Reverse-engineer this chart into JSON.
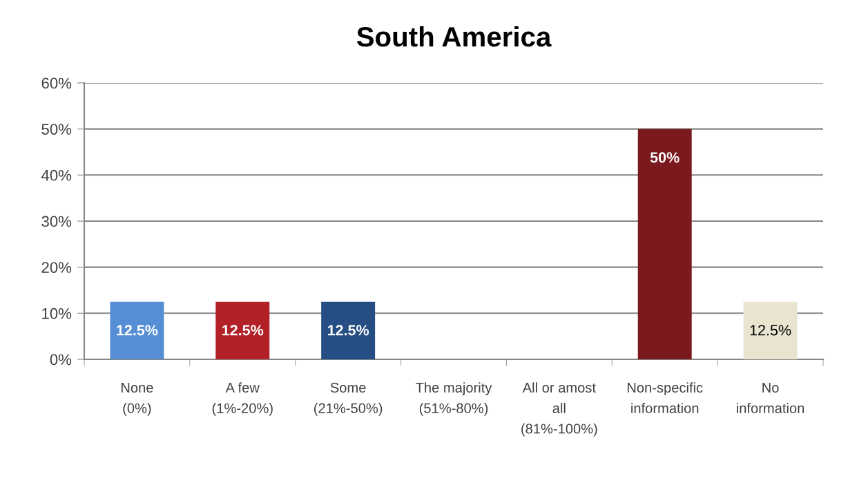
{
  "chart_data": {
    "type": "bar",
    "title": "South America",
    "categories": [
      "None\n(0%)",
      "A few\n(1%-20%)",
      "Some\n(21%-50%)",
      "The majority\n(51%-80%)",
      "All or amost\nall\n(81%-100%)",
      "Non-specific\ninformation",
      "No\ninformation"
    ],
    "values": [
      12.5,
      12.5,
      12.5,
      0,
      0,
      50,
      12.5
    ],
    "colors": [
      "#558ed5",
      "#b22028",
      "#254e84",
      "#254e84",
      "#254e84",
      "#7a1a1f",
      "#e8e4d0"
    ],
    "value_labels": [
      "12.5%",
      "12.5%",
      "12.5%",
      null,
      null,
      "50%",
      "12.5%"
    ],
    "ylim": [
      0,
      60
    ],
    "yticks": [
      {
        "value": 0,
        "label": "0%"
      },
      {
        "value": 10,
        "label": "10%"
      },
      {
        "value": 20,
        "label": "20%"
      },
      {
        "value": 30,
        "label": "30%"
      },
      {
        "value": 40,
        "label": "40%"
      },
      {
        "value": 50,
        "label": "50%"
      },
      {
        "value": 60,
        "label": "60%"
      }
    ],
    "grid": "y"
  }
}
